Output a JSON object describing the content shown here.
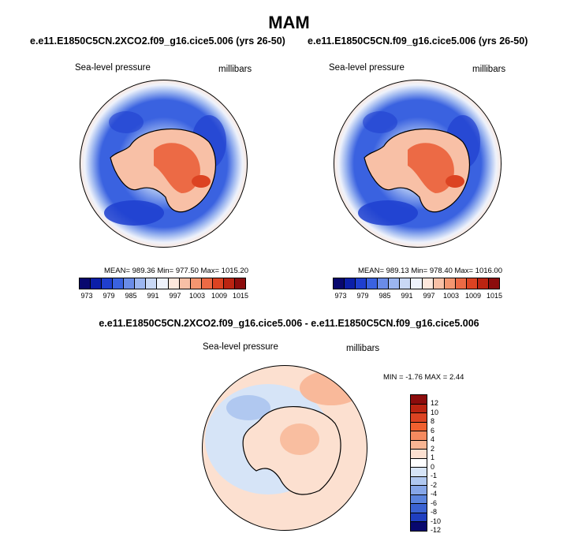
{
  "title": "MAM",
  "panels": [
    {
      "case": "e.e11.E1850C5CN.2XCO2.f09_g16.cice5.006 (yrs 26-50)",
      "variable": "Sea-level pressure",
      "units": "millibars",
      "stats": "MEAN= 989.36  Min= 977.50  Max= 1015.20"
    },
    {
      "case": "e.e11.E1850C5CN.f09_g16.cice5.006 (yrs 26-50)",
      "variable": "Sea-level pressure",
      "units": "millibars",
      "stats": "MEAN= 989.13  Min= 978.40  Max= 1016.00"
    }
  ],
  "abs_colorbar": {
    "colors": [
      "#08086e",
      "#0b1fa8",
      "#1f3fcf",
      "#3a62e0",
      "#6a8ce8",
      "#9cb6f0",
      "#c9d8f5",
      "#eef2fb",
      "#fde7dc",
      "#f8c0a6",
      "#f39670",
      "#ec6a45",
      "#dc4322",
      "#bb2411",
      "#8c0c0c"
    ],
    "labels": [
      "973",
      "979",
      "985",
      "991",
      "997",
      "1003",
      "1009",
      "1015"
    ]
  },
  "diff": {
    "title": "e.e11.E1850C5CN.2XCO2.f09_g16.cice5.006 - e.e11.E1850C5CN.f09_g16.cice5.006",
    "variable": "Sea-level pressure",
    "units": "millibars",
    "stats": "MIN =  -1.76 MAX =   2.44",
    "colors": [
      "#8c0c0c",
      "#bb2411",
      "#dc4322",
      "#f0602f",
      "#f58a5f",
      "#f8b593",
      "#fce0d0",
      "#ffffff",
      "#d6e4f7",
      "#b0c8f0",
      "#86a6e8",
      "#5b84de",
      "#3a62d2",
      "#1f3fc0",
      "#08086e"
    ],
    "labels": [
      "12",
      "10",
      "8",
      "6",
      "4",
      "2",
      "1",
      "0",
      "-1",
      "-2",
      "-4",
      "-6",
      "-8",
      "-10",
      "-12"
    ]
  }
}
